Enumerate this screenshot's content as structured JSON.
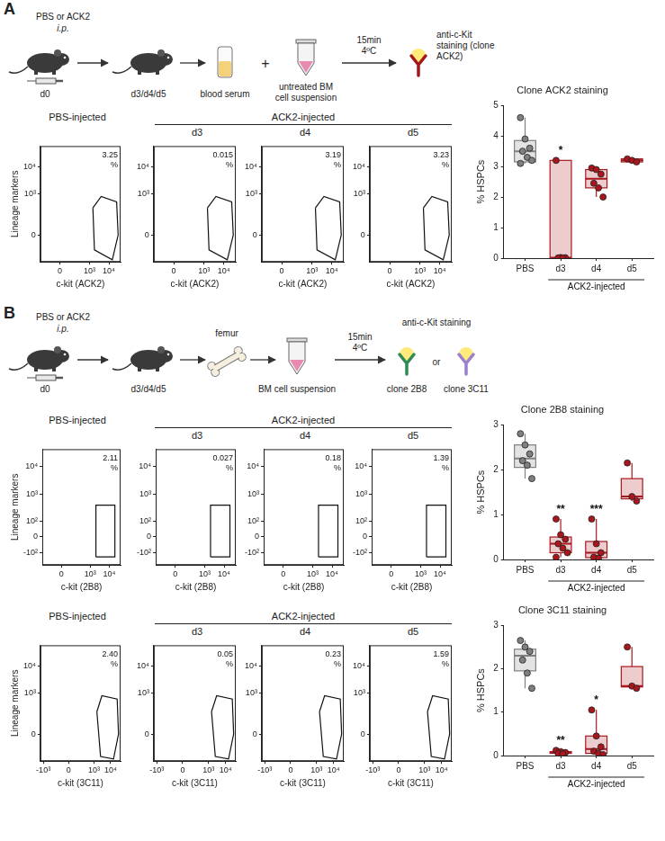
{
  "figure": {
    "panels": [
      {
        "letter": "A",
        "schematic": {
          "injection": "PBS or ACK2",
          "route": "i.p.",
          "start_day": "d0",
          "end_days": "d3/d4/d5",
          "serum": "blood serum",
          "plus": "+",
          "cells": [
            "untreated BM",
            "cell suspension"
          ],
          "incubation": [
            "15min",
            "4ºC"
          ],
          "staining": [
            "anti-c-Kit",
            "staining (clone",
            "ACK2)"
          ]
        }
      },
      {
        "letter": "B",
        "schematic": {
          "injection": "PBS or ACK2",
          "route": "i.p.",
          "start_day": "d0",
          "end_days": "d3/d4/d5",
          "bone": "femur",
          "cells": [
            "BM cell suspension"
          ],
          "incubation": [
            "15min",
            "4ºC"
          ],
          "staining": "anti-c-Kit staining",
          "clone_1": "clone 2B8",
          "or": "or",
          "clone_2": "clone 3C11"
        }
      }
    ],
    "rows": [
      {
        "groups": [
          "PBS-injected",
          "ACK2-injected"
        ]
      },
      {
        "groups": [
          "PBS-injected",
          "ACK2-injected"
        ]
      },
      {
        "groups": [
          "PBS-injected",
          "ACK2-injected"
        ]
      }
    ]
  },
  "chart_data": [
    {
      "type": "scatter",
      "x_label": "c-kit (ACK2)",
      "y_label": "Lineage markers",
      "xlim": [
        -300,
        40000
      ],
      "ylim": [
        -300,
        60000
      ],
      "xticks": [
        0,
        {
          "value": 1000,
          "label": "10³"
        },
        {
          "value": 10000,
          "label": "10⁴"
        }
      ],
      "yticks": [
        0,
        {
          "value": 1000,
          "label": "10³"
        },
        {
          "value": 10000,
          "label": "10⁴"
        }
      ],
      "gate": {
        "x": [
          1500,
          1800,
          15000,
          30000,
          25000,
          4000
        ],
        "y": [
          300,
          -100,
          -250,
          0,
          500,
          800
        ]
      },
      "values": [
        3.25
      ],
      "value_labels": [
        "3.25 %"
      ],
      "grid": false
    },
    {
      "type": "scatter",
      "title": "d3",
      "x_label": "c-kit (ACK2)",
      "xlim": [
        -300,
        40000
      ],
      "ylim": [
        -300,
        60000
      ],
      "xticks": [
        0,
        {
          "value": 1000,
          "label": "10³"
        },
        {
          "value": 10000,
          "label": "10⁴"
        }
      ],
      "yticks": [
        0,
        {
          "value": 1000,
          "label": "10³"
        },
        {
          "value": 10000,
          "label": "10⁴"
        }
      ],
      "gate": {
        "x": [
          1500,
          1800,
          15000,
          30000,
          25000,
          4000
        ],
        "y": [
          300,
          -100,
          -250,
          0,
          500,
          800
        ]
      },
      "values": [
        0.015
      ],
      "value_labels": [
        "0.015 %"
      ],
      "grid": false
    },
    {
      "type": "scatter",
      "title": "d4",
      "x_label": "c-kit (ACK2)",
      "xlim": [
        -300,
        40000
      ],
      "ylim": [
        -300,
        60000
      ],
      "xticks": [
        0,
        {
          "value": 1000,
          "label": "10³"
        },
        {
          "value": 10000,
          "label": "10⁴"
        }
      ],
      "yticks": [
        0,
        {
          "value": 1000,
          "label": "10³"
        },
        {
          "value": 10000,
          "label": "10⁴"
        }
      ],
      "gate": {
        "x": [
          1500,
          1800,
          15000,
          30000,
          25000,
          4000
        ],
        "y": [
          300,
          -100,
          -250,
          0,
          500,
          800
        ]
      },
      "values": [
        3.19
      ],
      "value_labels": [
        "3.19 %"
      ],
      "grid": false
    },
    {
      "type": "scatter",
      "title": "d5",
      "x_label": "c-kit (ACK2)",
      "xlim": [
        -300,
        40000
      ],
      "ylim": [
        -300,
        60000
      ],
      "xticks": [
        0,
        {
          "value": 1000,
          "label": "10³"
        },
        {
          "value": 10000,
          "label": "10⁴"
        }
      ],
      "yticks": [
        0,
        {
          "value": 1000,
          "label": "10³"
        },
        {
          "value": 10000,
          "label": "10⁴"
        }
      ],
      "gate": {
        "x": [
          1500,
          1800,
          15000,
          30000,
          25000,
          4000
        ],
        "y": [
          300,
          -100,
          -250,
          0,
          500,
          800
        ]
      },
      "values": [
        3.23
      ],
      "value_labels": [
        "3.23 %"
      ],
      "grid": false
    },
    {
      "type": "box",
      "title": "Clone ACK2 staining",
      "y_label": "% HSPCs",
      "categories": [
        "PBS",
        "d3",
        "d4",
        "d5"
      ],
      "group_label": "ACK2-injected",
      "group_categories": [
        "d3",
        "d4",
        "d5"
      ],
      "ylim": [
        0,
        5
      ],
      "yticks": [
        0,
        1,
        2,
        3,
        4,
        5
      ],
      "colors": [
        "#808080",
        "#a8171d",
        "#a8171d",
        "#a8171d"
      ],
      "points": [
        [
          4.6,
          3.9,
          3.6,
          3.5,
          3.3,
          3.2,
          3.1
        ],
        [
          3.2,
          0.02,
          0.015,
          0.01,
          0.005
        ],
        [
          2.95,
          2.9,
          2.75,
          2.45,
          2.3,
          2.0
        ],
        [
          3.25,
          3.2,
          3.15
        ]
      ],
      "boxes": [
        {
          "min": 3.1,
          "q1": 3.15,
          "median": 3.5,
          "q3": 3.85,
          "max": 4.6
        },
        {
          "min": 0.005,
          "q1": 0.008,
          "median": 0.015,
          "q3": 3.2,
          "max": 3.2
        },
        {
          "min": 2.0,
          "q1": 2.3,
          "median": 2.6,
          "q3": 2.9,
          "max": 2.95
        },
        {
          "min": 3.15,
          "q1": 3.15,
          "median": 3.2,
          "q3": 3.25,
          "max": 3.25
        }
      ],
      "significance": [
        null,
        "*",
        null,
        null
      ],
      "grid": false
    },
    {
      "type": "scatter",
      "x_label": "c-kit (2B8)",
      "y_label": "Lineage markers",
      "xlim": [
        -300,
        40000
      ],
      "ylim": [
        -300,
        40000
      ],
      "xticks": [
        0,
        {
          "value": 1000,
          "label": "10³"
        },
        {
          "value": 10000,
          "label": "10⁴"
        }
      ],
      "yticks": [
        {
          "value": -100,
          "label": "-10²"
        },
        0,
        {
          "value": 100,
          "label": "10²"
        },
        {
          "value": 1000,
          "label": "10³"
        },
        {
          "value": 10000,
          "label": "10⁴"
        }
      ],
      "gate": {
        "x": [
          2000,
          2000,
          20000,
          20000
        ],
        "y": [
          -150,
          400,
          400,
          -150
        ]
      },
      "values": [
        2.11
      ],
      "value_labels": [
        "2.11 %"
      ],
      "grid": false
    },
    {
      "type": "scatter",
      "title": "d3",
      "x_label": "c-kit (2B8)",
      "xlim": [
        -300,
        40000
      ],
      "ylim": [
        -300,
        40000
      ],
      "xticks": [
        0,
        {
          "value": 1000,
          "label": "10³"
        },
        {
          "value": 10000,
          "label": "10⁴"
        }
      ],
      "yticks": [
        {
          "value": -100,
          "label": "-10²"
        },
        0,
        {
          "value": 100,
          "label": "10²"
        },
        {
          "value": 1000,
          "label": "10³"
        },
        {
          "value": 10000,
          "label": "10⁴"
        }
      ],
      "gate": {
        "x": [
          2000,
          2000,
          20000,
          20000
        ],
        "y": [
          -150,
          400,
          400,
          -150
        ]
      },
      "values": [
        0.027
      ],
      "value_labels": [
        "0.027 %"
      ],
      "grid": false
    },
    {
      "type": "scatter",
      "title": "d4",
      "x_label": "c-kit (2B8)",
      "xlim": [
        -300,
        40000
      ],
      "ylim": [
        -300,
        40000
      ],
      "xticks": [
        0,
        {
          "value": 1000,
          "label": "10³"
        },
        {
          "value": 10000,
          "label": "10⁴"
        }
      ],
      "yticks": [
        {
          "value": -100,
          "label": "-10²"
        },
        0,
        {
          "value": 100,
          "label": "10²"
        },
        {
          "value": 1000,
          "label": "10³"
        },
        {
          "value": 10000,
          "label": "10⁴"
        }
      ],
      "gate": {
        "x": [
          2000,
          2000,
          20000,
          20000
        ],
        "y": [
          -150,
          400,
          400,
          -150
        ]
      },
      "values": [
        0.18
      ],
      "value_labels": [
        "0.18 %"
      ],
      "grid": false
    },
    {
      "type": "scatter",
      "title": "d5",
      "x_label": "c-kit (2B8)",
      "xlim": [
        -300,
        40000
      ],
      "ylim": [
        -300,
        40000
      ],
      "xticks": [
        0,
        {
          "value": 1000,
          "label": "10³"
        },
        {
          "value": 10000,
          "label": "10⁴"
        }
      ],
      "yticks": [
        {
          "value": -100,
          "label": "-10²"
        },
        0,
        {
          "value": 100,
          "label": "10²"
        },
        {
          "value": 1000,
          "label": "10³"
        },
        {
          "value": 10000,
          "label": "10⁴"
        }
      ],
      "gate": {
        "x": [
          2000,
          2000,
          20000,
          20000
        ],
        "y": [
          -150,
          400,
          400,
          -150
        ]
      },
      "values": [
        1.39
      ],
      "value_labels": [
        "1.39 %"
      ],
      "grid": false
    },
    {
      "type": "box",
      "title": "Clone 2B8 staining",
      "y_label": "% HSPCs",
      "categories": [
        "PBS",
        "d3",
        "d4",
        "d5"
      ],
      "group_label": "ACK2-injected",
      "group_categories": [
        "d3",
        "d4",
        "d5"
      ],
      "ylim": [
        0,
        3
      ],
      "yticks": [
        0,
        1,
        2,
        3
      ],
      "colors": [
        "#808080",
        "#a8171d",
        "#a8171d",
        "#a8171d"
      ],
      "points": [
        [
          2.8,
          2.55,
          2.35,
          2.2,
          2.1,
          1.8
        ],
        [
          0.9,
          0.55,
          0.45,
          0.35,
          0.25,
          0.15,
          0.05
        ],
        [
          0.9,
          0.35,
          0.15,
          0.05,
          0.03
        ],
        [
          2.15,
          1.4,
          1.3
        ]
      ],
      "boxes": [
        {
          "min": 1.8,
          "q1": 2.05,
          "median": 2.25,
          "q3": 2.55,
          "max": 2.8
        },
        {
          "min": 0.05,
          "q1": 0.15,
          "median": 0.35,
          "q3": 0.5,
          "max": 0.9
        },
        {
          "min": 0.03,
          "q1": 0.04,
          "median": 0.15,
          "q3": 0.4,
          "max": 0.9
        },
        {
          "min": 1.3,
          "q1": 1.35,
          "median": 1.4,
          "q3": 1.8,
          "max": 2.15
        }
      ],
      "significance": [
        null,
        "**",
        "***",
        null
      ],
      "grid": false
    },
    {
      "type": "scatter",
      "x_label": "c-kit (3C11)",
      "y_label": "Lineage markers",
      "xlim": [
        -1500,
        40000
      ],
      "ylim": [
        -300,
        60000
      ],
      "xticks": [
        {
          "value": -1000,
          "label": "-10³"
        },
        0,
        {
          "value": 1000,
          "label": "10³"
        },
        {
          "value": 10000,
          "label": "10⁴"
        }
      ],
      "yticks": [
        0,
        {
          "value": 1000,
          "label": "10³"
        },
        {
          "value": 10000,
          "label": "10⁴"
        }
      ],
      "gate": {
        "x": [
          1500,
          2500,
          15000,
          30000,
          25000,
          3000
        ],
        "y": [
          200,
          -200,
          -250,
          0,
          600,
          800
        ]
      },
      "values": [
        2.4
      ],
      "value_labels": [
        "2.40 %"
      ],
      "grid": false
    },
    {
      "type": "scatter",
      "title": "d3",
      "x_label": "c-kit (3C11)",
      "xlim": [
        -1500,
        40000
      ],
      "ylim": [
        -300,
        60000
      ],
      "xticks": [
        {
          "value": -1000,
          "label": "-10³"
        },
        0,
        {
          "value": 1000,
          "label": "10³"
        },
        {
          "value": 10000,
          "label": "10⁴"
        }
      ],
      "yticks": [
        0,
        {
          "value": 1000,
          "label": "10³"
        },
        {
          "value": 10000,
          "label": "10⁴"
        }
      ],
      "gate": {
        "x": [
          1500,
          2500,
          15000,
          30000,
          25000,
          3000
        ],
        "y": [
          200,
          -200,
          -250,
          0,
          600,
          800
        ]
      },
      "values": [
        0.05
      ],
      "value_labels": [
        "0.05 %"
      ],
      "grid": false
    },
    {
      "type": "scatter",
      "title": "d4",
      "x_label": "c-kit (3C11)",
      "xlim": [
        -1500,
        40000
      ],
      "ylim": [
        -300,
        60000
      ],
      "xticks": [
        {
          "value": -1000,
          "label": "-10³"
        },
        0,
        {
          "value": 1000,
          "label": "10³"
        },
        {
          "value": 10000,
          "label": "10⁴"
        }
      ],
      "yticks": [
        0,
        {
          "value": 1000,
          "label": "10³"
        },
        {
          "value": 10000,
          "label": "10⁴"
        }
      ],
      "gate": {
        "x": [
          1500,
          2500,
          15000,
          30000,
          25000,
          3000
        ],
        "y": [
          200,
          -200,
          -250,
          0,
          600,
          800
        ]
      },
      "values": [
        0.23
      ],
      "value_labels": [
        "0.23 %"
      ],
      "grid": false
    },
    {
      "type": "scatter",
      "title": "d5",
      "x_label": "c-kit (3C11)",
      "xlim": [
        -1500,
        40000
      ],
      "ylim": [
        -300,
        60000
      ],
      "xticks": [
        {
          "value": -1000,
          "label": "-10³"
        },
        0,
        {
          "value": 1000,
          "label": "10³"
        },
        {
          "value": 10000,
          "label": "10⁴"
        }
      ],
      "yticks": [
        0,
        {
          "value": 1000,
          "label": "10³"
        },
        {
          "value": 10000,
          "label": "10⁴"
        }
      ],
      "gate": {
        "x": [
          1500,
          2500,
          15000,
          30000,
          25000,
          3000
        ],
        "y": [
          200,
          -200,
          -250,
          0,
          600,
          800
        ]
      },
      "values": [
        1.59
      ],
      "value_labels": [
        "1.59 %"
      ],
      "grid": false
    },
    {
      "type": "box",
      "title": "Clone 3C11 staining",
      "y_label": "% HSPCs",
      "categories": [
        "PBS",
        "d3",
        "d4",
        "d5"
      ],
      "group_label": "ACK2-injected",
      "group_categories": [
        "d3",
        "d4",
        "d5"
      ],
      "ylim": [
        0,
        3
      ],
      "yticks": [
        0,
        1,
        2,
        3
      ],
      "colors": [
        "#808080",
        "#a8171d",
        "#a8171d",
        "#a8171d"
      ],
      "points": [
        [
          2.65,
          2.5,
          2.4,
          2.2,
          1.9,
          1.55
        ],
        [
          0.12,
          0.09,
          0.07,
          0.05,
          0.04
        ],
        [
          1.05,
          0.45,
          0.2,
          0.1,
          0.05,
          0.02
        ],
        [
          2.5,
          1.6,
          1.55
        ]
      ],
      "boxes": [
        {
          "min": 1.55,
          "q1": 1.95,
          "median": 2.3,
          "q3": 2.45,
          "max": 2.65
        },
        {
          "min": 0.04,
          "q1": 0.05,
          "median": 0.07,
          "q3": 0.09,
          "max": 0.12
        },
        {
          "min": 0.02,
          "q1": 0.05,
          "median": 0.15,
          "q3": 0.45,
          "max": 1.05
        },
        {
          "min": 1.55,
          "q1": 1.58,
          "median": 1.6,
          "q3": 2.05,
          "max": 2.5
        }
      ],
      "significance": [
        null,
        "**",
        "*",
        null
      ],
      "grid": false
    }
  ]
}
